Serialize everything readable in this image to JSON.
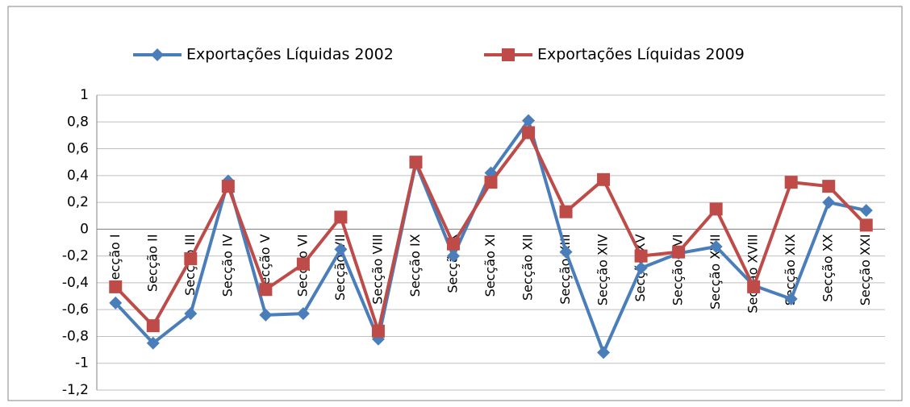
{
  "chart_data": {
    "type": "line",
    "categories": [
      "Secção I",
      "Secção II",
      "Secção III",
      "Secção IV",
      "Secção V",
      "Secção VI",
      "Secção VII",
      "Secção VIII",
      "Secção IX",
      "Secção X",
      "Secção XI",
      "Secção XII",
      "Secção XIII",
      "Secção XIV",
      "Secção XV",
      "Secção XVI",
      "Secção XVII",
      "Secção XVIII",
      "Secção XIX",
      "Secção XX",
      "Secção XXI"
    ],
    "series": [
      {
        "name": "Exportações Líquidas 2002",
        "color": "#4a7ebb",
        "marker": "diamond",
        "values": [
          -0.55,
          -0.85,
          -0.63,
          0.36,
          -0.64,
          -0.63,
          -0.15,
          -0.82,
          0.49,
          -0.2,
          0.42,
          0.81,
          -0.17,
          -0.92,
          -0.29,
          -0.18,
          -0.13,
          -0.42,
          -0.52,
          0.2,
          0.14
        ]
      },
      {
        "name": "Exportações Líquidas 2009",
        "color": "#be4b48",
        "marker": "square",
        "values": [
          -0.43,
          -0.72,
          -0.22,
          0.32,
          -0.45,
          -0.26,
          0.09,
          -0.76,
          0.5,
          -0.11,
          0.35,
          0.72,
          0.13,
          0.37,
          -0.2,
          -0.17,
          0.15,
          -0.43,
          0.35,
          0.32,
          0.03
        ]
      }
    ],
    "ylim": [
      -1.2,
      1
    ],
    "yticks": [
      1,
      {
        "value": 0.8,
        "label": "0,8"
      },
      {
        "value": 0.6,
        "label": "0,6"
      },
      {
        "value": 0.4,
        "label": "0,4"
      },
      {
        "value": 0.2,
        "label": "0,2"
      },
      0,
      {
        "value": -0.2,
        "label": "-0,2"
      },
      {
        "value": -0.4,
        "label": "-0,4"
      },
      {
        "value": -0.6,
        "label": "-0,6"
      },
      {
        "value": -0.8,
        "label": "-0,8"
      },
      -1,
      {
        "value": -1.2,
        "label": "-1,2"
      }
    ],
    "grid": true,
    "legend": "top"
  }
}
